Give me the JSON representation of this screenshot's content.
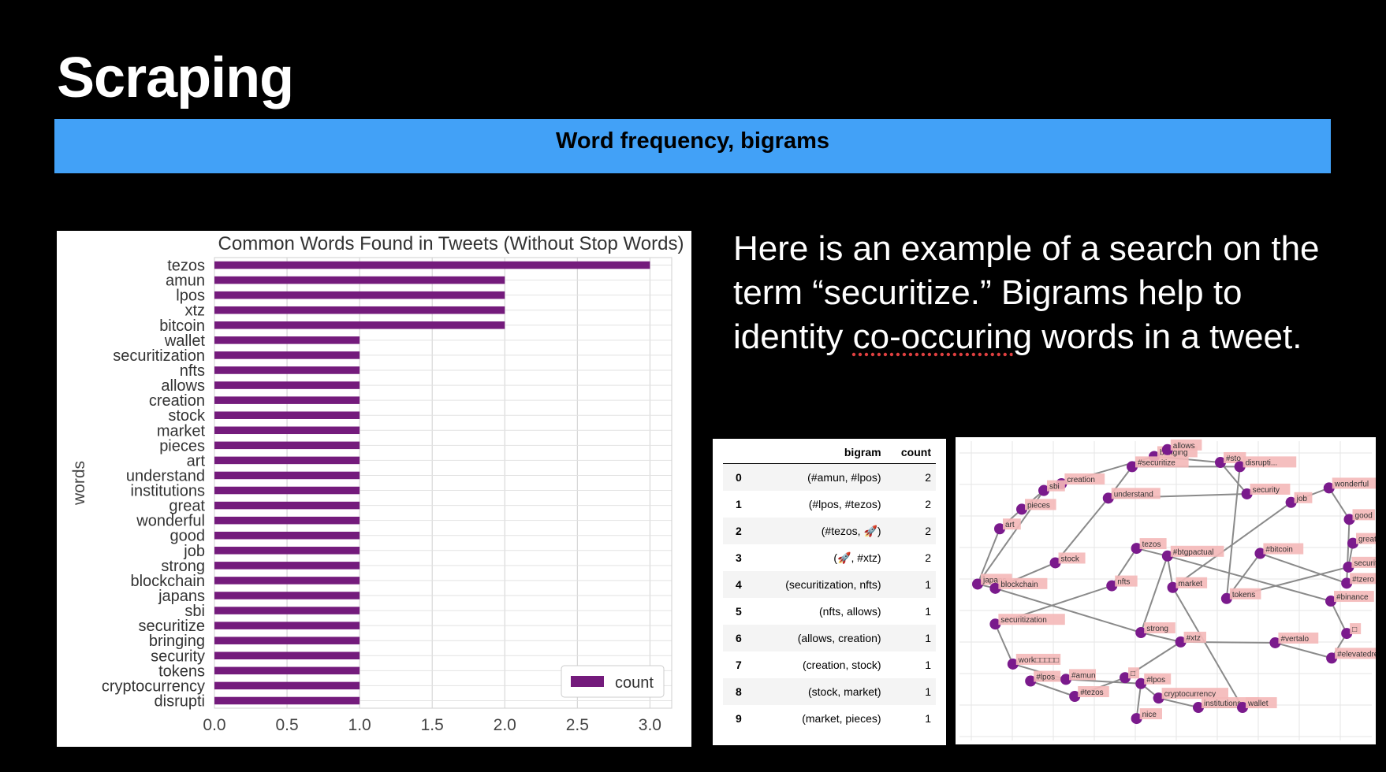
{
  "slide": {
    "title": "Scraping",
    "subtitle": "Word frequency, bigrams",
    "description_parts": [
      "Here is an example of a search on the term “securitize.” Bigrams help to identity ",
      "co-occuring",
      " words in a tweet."
    ]
  },
  "chart_data": {
    "type": "bar",
    "orientation": "horizontal",
    "title": "Common Words Found in Tweets (Without Stop Words)",
    "ylabel": "words",
    "xlabel": "",
    "xlim": [
      0,
      3.15
    ],
    "xticks": [
      "0.0",
      "0.5",
      "1.0",
      "1.5",
      "2.0",
      "2.5",
      "3.0"
    ],
    "grid": true,
    "legend": "lower-right",
    "series": [
      {
        "name": "count",
        "color": "#741b7c"
      }
    ],
    "categories": [
      "tezos",
      "amun",
      "lpos",
      "xtz",
      "bitcoin",
      "wallet",
      "securitization",
      "nfts",
      "allows",
      "creation",
      "stock",
      "market",
      "pieces",
      "art",
      "understand",
      "institutions",
      "great",
      "wonderful",
      "good",
      "job",
      "strong",
      "blockchain",
      "japans",
      "sbi",
      "securitize",
      "bringing",
      "security",
      "tokens",
      "cryptocurrency",
      "disrupti"
    ],
    "values": [
      3,
      2,
      2,
      2,
      2,
      1,
      1,
      1,
      1,
      1,
      1,
      1,
      1,
      1,
      1,
      1,
      1,
      1,
      1,
      1,
      1,
      1,
      1,
      1,
      1,
      1,
      1,
      1,
      1,
      1
    ]
  },
  "bigram_table": {
    "columns": [
      "",
      "bigram",
      "count"
    ],
    "rows": [
      {
        "idx": "0",
        "bigram": "(#amun, #lpos)",
        "count": "2"
      },
      {
        "idx": "1",
        "bigram": "(#lpos, #tezos)",
        "count": "2"
      },
      {
        "idx": "2",
        "bigram": "(#tezos, 🚀)",
        "count": "2"
      },
      {
        "idx": "3",
        "bigram": "(🚀, #xtz)",
        "count": "2"
      },
      {
        "idx": "4",
        "bigram": "(securitization, nfts)",
        "count": "1"
      },
      {
        "idx": "5",
        "bigram": "(nfts, allows)",
        "count": "1"
      },
      {
        "idx": "6",
        "bigram": "(allows, creation)",
        "count": "1"
      },
      {
        "idx": "7",
        "bigram": "(creation, stock)",
        "count": "1"
      },
      {
        "idx": "8",
        "bigram": "(stock, market)",
        "count": "1"
      },
      {
        "idx": "9",
        "bigram": "(market, pieces)",
        "count": "1"
      }
    ]
  },
  "network": {
    "node_color": "#7a1a8c",
    "label_bg": "#f4b8b8",
    "edge_color": "#8a8a8a",
    "nodes": [
      {
        "id": "bringing",
        "label": "bringing"
      },
      {
        "id": "allows",
        "label": "allows"
      },
      {
        "id": "sto",
        "label": "#sto"
      },
      {
        "id": "disrupti",
        "label": "disrupti..."
      },
      {
        "id": "securitize1",
        "label": "#securitize"
      },
      {
        "id": "creation",
        "label": "creation"
      },
      {
        "id": "sbi",
        "label": "sbi"
      },
      {
        "id": "understand",
        "label": "understand"
      },
      {
        "id": "security",
        "label": "security"
      },
      {
        "id": "wonderful",
        "label": "wonderful"
      },
      {
        "id": "job",
        "label": "job"
      },
      {
        "id": "pieces",
        "label": "pieces"
      },
      {
        "id": "art",
        "label": "art"
      },
      {
        "id": "good",
        "label": "good"
      },
      {
        "id": "great",
        "label": "great"
      },
      {
        "id": "tezos",
        "label": "tezos"
      },
      {
        "id": "btgpactual",
        "label": "#btgpactual"
      },
      {
        "id": "bitcoin",
        "label": "#bitcoin"
      },
      {
        "id": "securitize2",
        "label": "securitize"
      },
      {
        "id": "stock",
        "label": "stock"
      },
      {
        "id": "japans",
        "label": "japans"
      },
      {
        "id": "blockchain",
        "label": "blockchain"
      },
      {
        "id": "nfts",
        "label": "nfts"
      },
      {
        "id": "market",
        "label": "market"
      },
      {
        "id": "tokens",
        "label": "tokens"
      },
      {
        "id": "tzero",
        "label": "#tzero"
      },
      {
        "id": "binance",
        "label": "#binance"
      },
      {
        "id": "securitization",
        "label": "securitization"
      },
      {
        "id": "strong",
        "label": "strong"
      },
      {
        "id": "xtz",
        "label": "#xtz"
      },
      {
        "id": "vertalo",
        "label": "#vertalo"
      },
      {
        "id": "box1",
        "label": "□"
      },
      {
        "id": "elevated",
        "label": "#elevatedreturns"
      },
      {
        "id": "work",
        "label": "work□□□□□"
      },
      {
        "id": "amun",
        "label": "#amun"
      },
      {
        "id": "lpos",
        "label": "#lpos"
      },
      {
        "id": "box2",
        "label": "□"
      },
      {
        "id": "tezos2",
        "label": "#tezos"
      },
      {
        "id": "lpos2",
        "label": "#lpos"
      },
      {
        "id": "cryptocurrency",
        "label": "cryptocurrency"
      },
      {
        "id": "institutions",
        "label": "institutions"
      },
      {
        "id": "wallet",
        "label": "wallet"
      },
      {
        "id": "nice",
        "label": "nice"
      }
    ]
  }
}
